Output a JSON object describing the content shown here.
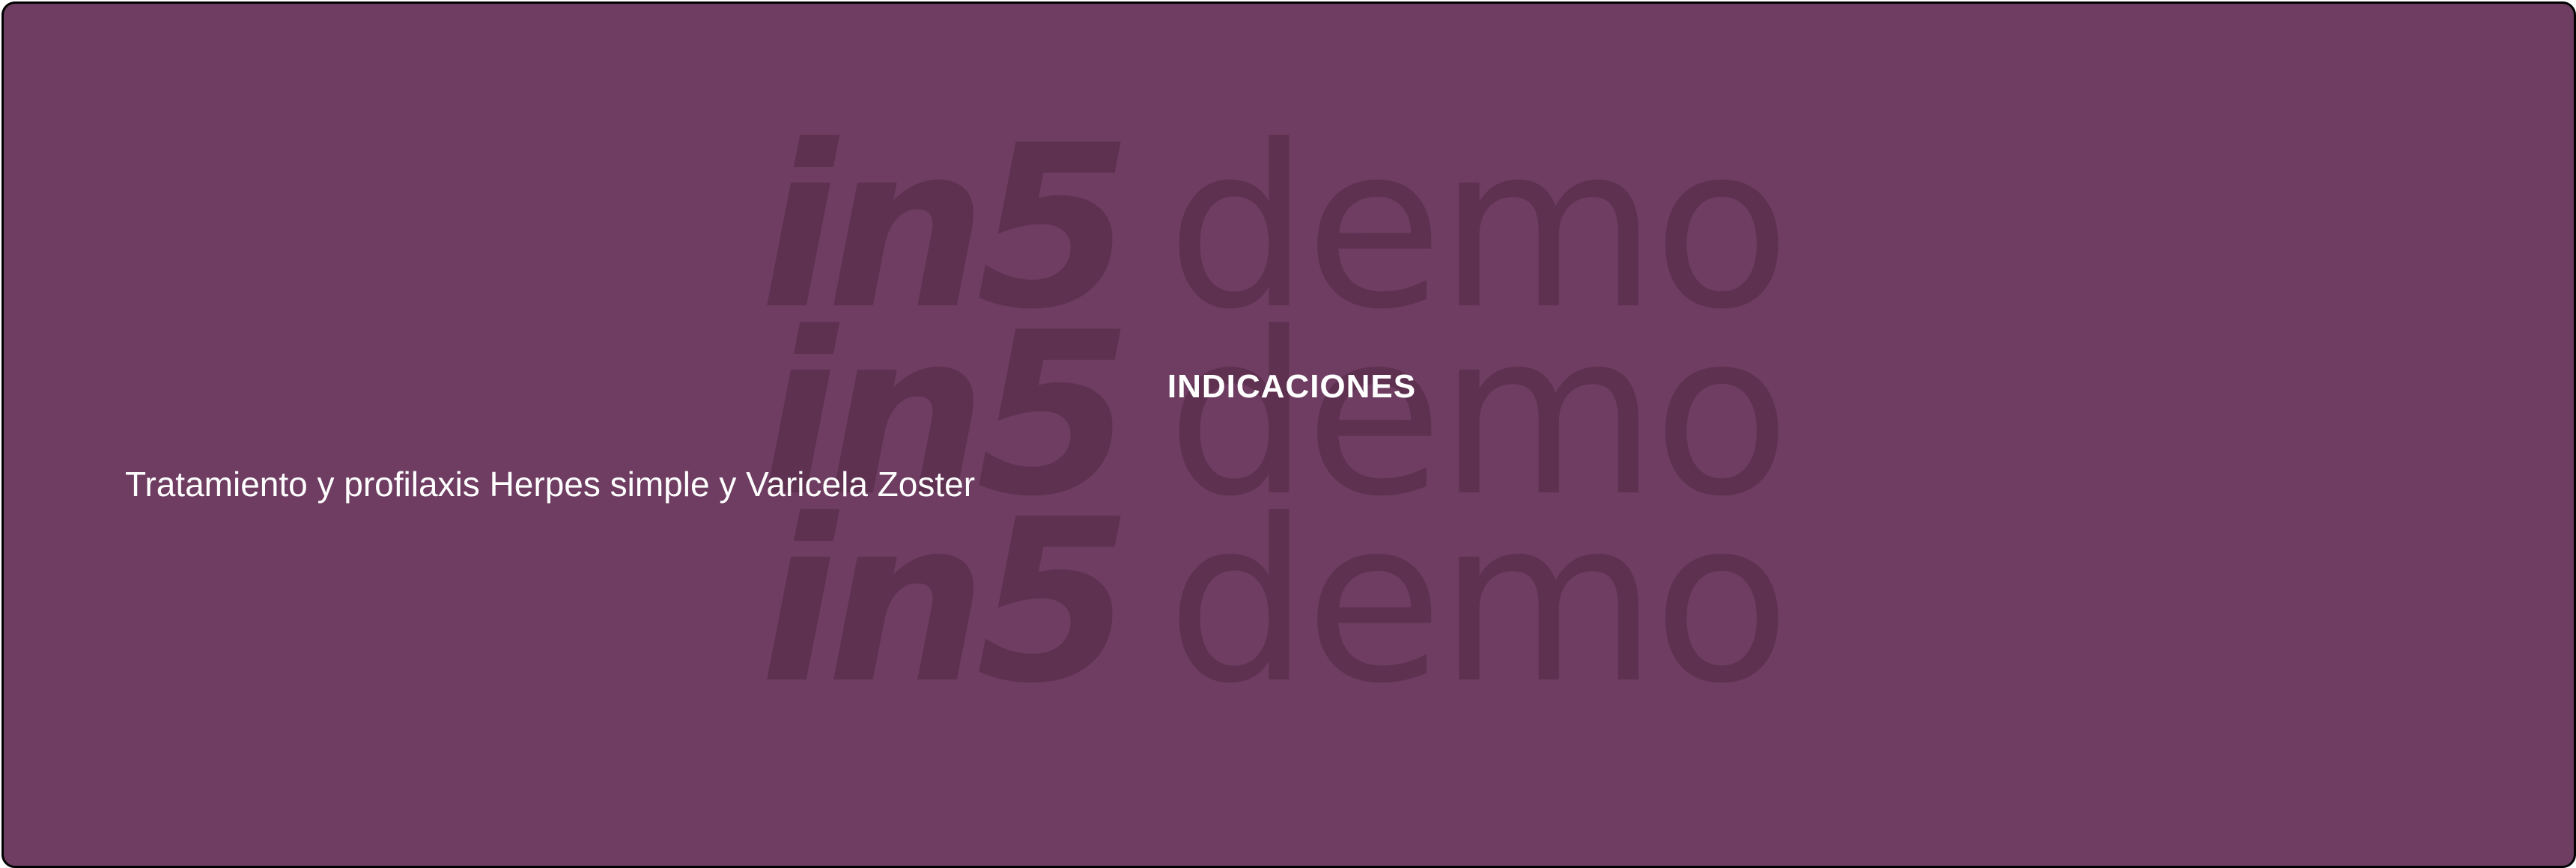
{
  "panel": {
    "heading": "INDICACIONES",
    "body": "Tratamiento y profilaxis Herpes simple y Varicela Zoster",
    "background_color": "#6e3d61",
    "text_color": "#ffffff"
  },
  "watermark": {
    "lines": [
      {
        "brand": "in5",
        "word": "demo"
      },
      {
        "brand": "in5",
        "word": "demo"
      },
      {
        "brand": "in5",
        "word": "demo"
      }
    ],
    "color": "#5e3150"
  }
}
